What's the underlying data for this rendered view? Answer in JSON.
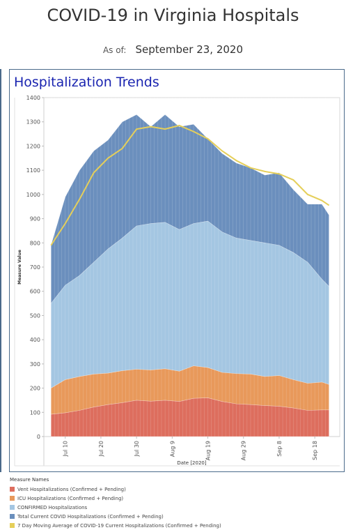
{
  "header": {
    "title": "COVID-19 in Virginia Hospitals",
    "asof_label": "As of:",
    "asof_date": "September 23, 2020"
  },
  "panel": {
    "title": "Hospitalization Trends"
  },
  "legend": {
    "title": "Measure Names",
    "items": [
      {
        "label": "Vent Hospitalizations (Confirmed + Pending)",
        "color": "#dd6e5e"
      },
      {
        "label": "ICU Hospitalizations (Confirmed + Pending)",
        "color": "#e8995b"
      },
      {
        "label": "CONFIRMED Hospitalizations",
        "color": "#a4c6e2"
      },
      {
        "label": "Total Current COVID Hospitalizations (Confirmed + Pending)",
        "color": "#6b8fbd"
      },
      {
        "label": "7 Day Moving Average of COVID-19 Current Hospitalizations (Confirmed + Pending)",
        "color": "#e5cf5a"
      }
    ]
  },
  "chart_data": {
    "type": "area",
    "xlabel": "Date [2020]",
    "ylabel": "Measure Value",
    "ylim": [
      0,
      1400
    ],
    "yticks": [
      0,
      100,
      200,
      300,
      400,
      500,
      600,
      700,
      800,
      900,
      1000,
      1100,
      1200,
      1300,
      1400
    ],
    "xtick_labels": [
      "Jul 10",
      "Jul 20",
      "Jul 30",
      "Aug 9",
      "Aug 19",
      "Aug 29",
      "Sep 8",
      "Sep 18"
    ],
    "xtick_dates": [
      "2020-07-10",
      "2020-07-20",
      "2020-07-30",
      "2020-08-09",
      "2020-08-19",
      "2020-08-29",
      "2020-09-08",
      "2020-09-18"
    ],
    "x_range": [
      "2020-07-04",
      "2020-09-25"
    ],
    "legend_position": "bottom-left",
    "grid": false,
    "x": [
      "2020-07-06",
      "2020-07-10",
      "2020-07-14",
      "2020-07-18",
      "2020-07-22",
      "2020-07-26",
      "2020-07-30",
      "2020-08-03",
      "2020-08-07",
      "2020-08-11",
      "2020-08-15",
      "2020-08-19",
      "2020-08-23",
      "2020-08-27",
      "2020-08-31",
      "2020-09-04",
      "2020-09-08",
      "2020-09-12",
      "2020-09-16",
      "2020-09-20",
      "2020-09-22"
    ],
    "series": [
      {
        "name": "Vent Hospitalizations (Confirmed + Pending)",
        "color": "#dd6e5e",
        "values": [
          92,
          98,
          108,
          122,
          132,
          140,
          150,
          146,
          150,
          145,
          158,
          160,
          145,
          135,
          132,
          128,
          125,
          118,
          108,
          110,
          110
        ]
      },
      {
        "name": "ICU Hospitalizations (Confirmed + Pending)",
        "color": "#e8995b",
        "values": [
          200,
          235,
          248,
          258,
          262,
          272,
          278,
          275,
          280,
          270,
          292,
          285,
          265,
          260,
          258,
          248,
          252,
          235,
          220,
          225,
          215
        ]
      },
      {
        "name": "CONFIRMED Hospitalizations",
        "color": "#a4c6e2",
        "values": [
          550,
          625,
          665,
          720,
          775,
          820,
          870,
          880,
          885,
          855,
          880,
          890,
          845,
          820,
          810,
          800,
          790,
          760,
          720,
          650,
          620
        ]
      },
      {
        "name": "Total Current COVID Hospitalizations (Confirmed + Pending)",
        "color": "#6b8fbd",
        "values": [
          790,
          990,
          1100,
          1180,
          1225,
          1300,
          1330,
          1280,
          1330,
          1280,
          1290,
          1230,
          1170,
          1130,
          1110,
          1080,
          1090,
          1020,
          960,
          960,
          915
        ]
      },
      {
        "name": "7 Day Moving Average of COVID-19 Current Hospitalizations (Confirmed + Pending)",
        "color": "#e5cf5a",
        "values": [
          790,
          880,
          980,
          1090,
          1150,
          1190,
          1270,
          1280,
          1270,
          1285,
          1260,
          1230,
          1180,
          1140,
          1110,
          1095,
          1085,
          1060,
          1000,
          975,
          955
        ]
      }
    ]
  }
}
